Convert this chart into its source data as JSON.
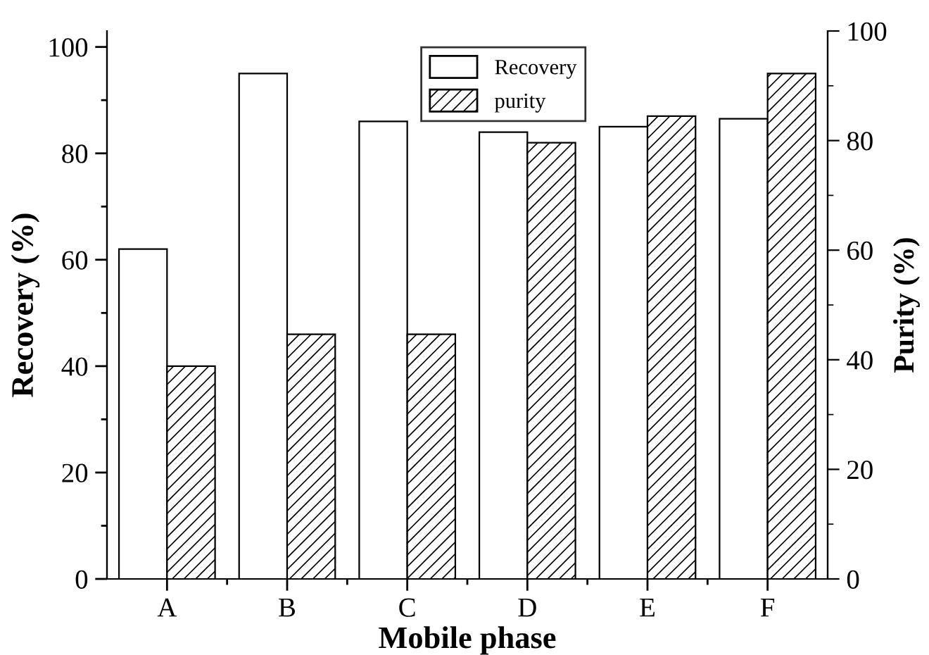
{
  "chart_data": {
    "type": "bar",
    "xlabel": "Mobile phase",
    "ylabel": "Recovery (%)",
    "y2label": "Purity (%)",
    "categories": [
      "A",
      "B",
      "C",
      "D",
      "E",
      "F"
    ],
    "series": [
      {
        "name": "Recovery",
        "color": "#ffffff",
        "values": [
          62,
          95,
          86,
          84,
          85,
          86.5
        ]
      },
      {
        "name": "purity",
        "color": "#000000",
        "values": [
          40,
          46,
          46,
          82,
          87,
          95
        ]
      }
    ],
    "ylim": [
      0,
      103
    ],
    "yticks": [
      0,
      20,
      40,
      60,
      80,
      100
    ],
    "y2lim": [
      0,
      100
    ],
    "y2ticks": [
      0,
      20,
      40,
      60,
      80,
      100
    ],
    "legend": "top",
    "grid": false
  }
}
